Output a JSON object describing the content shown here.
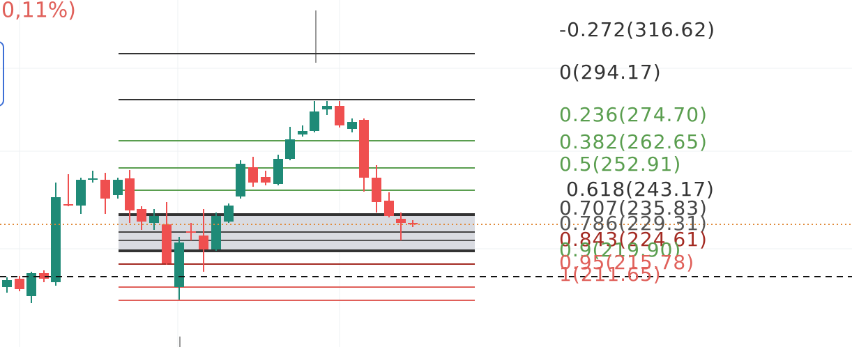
{
  "header": {
    "change": "0,11%)"
  },
  "fib_levels": [
    {
      "label": "-0.272(316.62)",
      "color": "#333333",
      "line_color": "#333333"
    },
    {
      "label": "0(294.17)",
      "color": "#333333",
      "line_color": "#333333"
    },
    {
      "label": "0.236(274.70)",
      "color": "#5a9e4f",
      "line_color": "#5a9e4f"
    },
    {
      "label": "0.382(262.65)",
      "color": "#5a9e4f",
      "line_color": "#5a9e4f"
    },
    {
      "label": "0.5(252.91)",
      "color": "#5a9e4f",
      "line_color": "#5a9e4f"
    },
    {
      "label": "0.618(243.17)",
      "color": "#333333",
      "line_color": "#333333"
    },
    {
      "label": "0.707(235.83)",
      "color": "#444444",
      "line_color": "#444444"
    },
    {
      "label": "0.786(229.31)",
      "color": "#555555",
      "line_color": "#555555"
    },
    {
      "label": "0.843(224.61)",
      "color": "#a32a22",
      "line_color": "#333333"
    },
    {
      "label": "0.9(219.90)",
      "color": "#5a9e4f",
      "line_color": "#a32a22"
    },
    {
      "label": "0.95(215.78)",
      "color": "#e0605a",
      "line_color": "#e0605a"
    },
    {
      "label": "1(211.65)",
      "color": "#e0605a",
      "line_color": "#e0605a"
    }
  ]
}
